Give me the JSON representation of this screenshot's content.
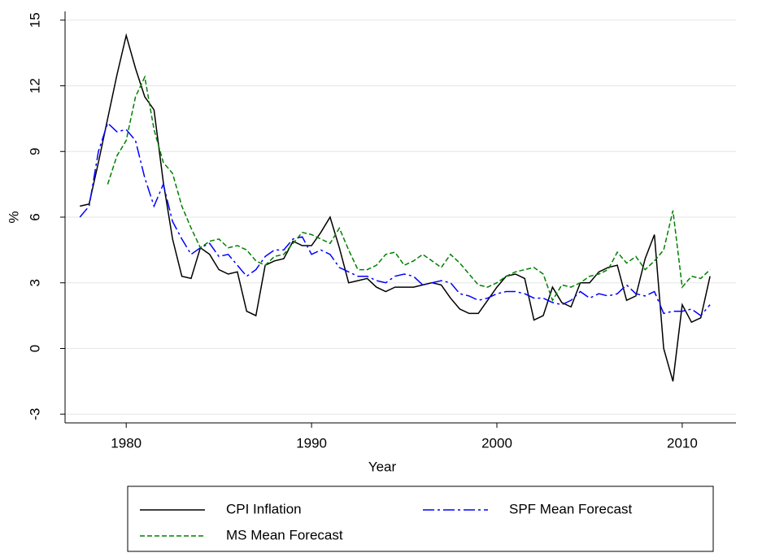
{
  "chart_data": {
    "type": "line",
    "xlabel": "Year",
    "ylabel": "%",
    "xlim": [
      1976.7,
      2012.9
    ],
    "xticks": [
      1980,
      1990,
      2000,
      2010
    ],
    "ylim": [
      -3.4,
      15.4
    ],
    "yticks": [
      -3,
      0,
      3,
      6,
      9,
      12,
      15
    ],
    "grid": true,
    "legend": "bottom",
    "x": [
      1977.5,
      1978,
      1978.5,
      1979,
      1979.5,
      1980,
      1980.5,
      1981,
      1981.5,
      1982,
      1982.5,
      1983,
      1983.5,
      1984,
      1984.5,
      1985,
      1985.5,
      1986,
      1986.5,
      1987,
      1987.5,
      1988,
      1988.5,
      1989,
      1989.5,
      1990,
      1990.5,
      1991,
      1991.5,
      1992,
      1992.5,
      1993,
      1993.5,
      1994,
      1994.5,
      1995,
      1995.5,
      1996,
      1996.5,
      1997,
      1997.5,
      1998,
      1998.5,
      1999,
      1999.5,
      2000,
      2000.5,
      2001,
      2001.5,
      2002,
      2002.5,
      2003,
      2003.5,
      2004,
      2004.5,
      2005,
      2005.5,
      2006,
      2006.5,
      2007,
      2007.5,
      2008,
      2008.5,
      2009,
      2009.5,
      2010,
      2010.5,
      2011,
      2011.5
    ],
    "series": [
      {
        "name": "CPI Inflation",
        "color": "#000000",
        "style": "solid",
        "values": [
          6.5,
          6.6,
          8.5,
          10.5,
          12.5,
          14.3,
          12.8,
          11.5,
          10.9,
          7.6,
          5.0,
          3.3,
          3.2,
          4.6,
          4.3,
          3.6,
          3.4,
          3.5,
          1.7,
          1.5,
          3.8,
          4.0,
          4.1,
          4.9,
          4.7,
          4.7,
          5.3,
          6.0,
          4.6,
          3.0,
          3.1,
          3.2,
          2.8,
          2.6,
          2.8,
          2.8,
          2.8,
          2.9,
          3.0,
          2.9,
          2.3,
          1.8,
          1.6,
          1.6,
          2.2,
          2.8,
          3.3,
          3.4,
          3.2,
          1.3,
          1.5,
          2.8,
          2.1,
          1.9,
          3.0,
          3.0,
          3.5,
          3.7,
          3.8,
          2.2,
          2.4,
          4.1,
          5.2,
          0.0,
          -1.5,
          2.0,
          1.2,
          1.4,
          3.3
        ]
      },
      {
        "name": "SPF Mean Forecast",
        "color": "#0000ff",
        "style": "dashdot",
        "values": [
          6.0,
          6.5,
          9.0,
          10.3,
          9.9,
          10.0,
          9.5,
          7.8,
          6.5,
          7.5,
          5.8,
          5.0,
          4.3,
          4.6,
          4.8,
          4.2,
          4.3,
          3.8,
          3.3,
          3.6,
          4.2,
          4.5,
          4.5,
          5.0,
          5.1,
          4.3,
          4.5,
          4.3,
          3.7,
          3.5,
          3.3,
          3.3,
          3.1,
          3.0,
          3.3,
          3.4,
          3.3,
          2.9,
          3.0,
          3.1,
          3.0,
          2.5,
          2.4,
          2.2,
          2.3,
          2.5,
          2.6,
          2.6,
          2.5,
          2.3,
          2.3,
          2.1,
          2.0,
          2.2,
          2.6,
          2.3,
          2.5,
          2.4,
          2.5,
          2.9,
          2.5,
          2.4,
          2.6,
          1.6,
          1.7,
          1.7,
          1.8,
          1.5,
          2.0
        ]
      },
      {
        "name": "MS Mean Forecast",
        "color": "#008000",
        "style": "dash",
        "values": [
          null,
          null,
          null,
          7.5,
          8.8,
          9.5,
          11.5,
          12.4,
          10.0,
          8.5,
          8.0,
          6.5,
          5.5,
          4.6,
          4.9,
          5.0,
          4.6,
          4.7,
          4.5,
          4.0,
          3.8,
          4.2,
          4.3,
          4.8,
          5.3,
          5.2,
          5.0,
          4.8,
          5.5,
          4.5,
          3.6,
          3.6,
          3.8,
          4.3,
          4.4,
          3.8,
          4.0,
          4.3,
          4.0,
          3.7,
          4.3,
          3.9,
          3.4,
          2.9,
          2.8,
          3.0,
          3.3,
          3.5,
          3.6,
          3.7,
          3.4,
          2.2,
          2.9,
          2.8,
          3.0,
          3.3,
          3.4,
          3.6,
          4.4,
          3.9,
          4.2,
          3.6,
          4.0,
          4.5,
          6.3,
          2.8,
          3.3,
          3.2,
          3.6
        ]
      }
    ]
  }
}
